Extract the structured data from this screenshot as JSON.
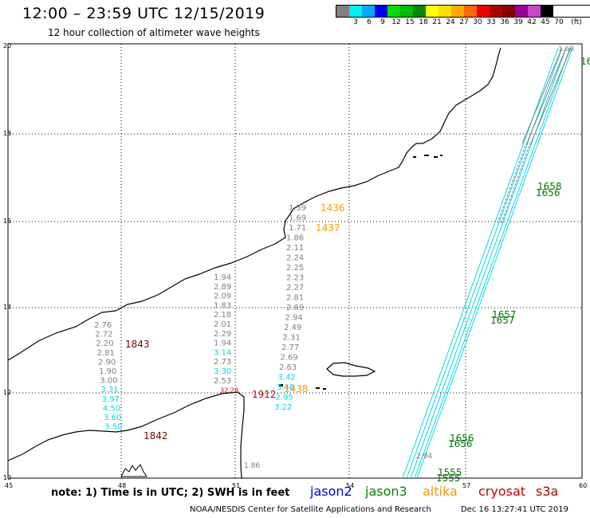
{
  "header": {
    "title": "12:00 – 23:59 UTC 12/15/2019",
    "subtitle": "12 hour collection of altimeter wave heights"
  },
  "legend": {
    "unit": "(ft)",
    "items": [
      {
        "label": "",
        "color": "#808080"
      },
      {
        "label": "3",
        "color": "#00eeee"
      },
      {
        "label": "6",
        "color": "#00aaff"
      },
      {
        "label": "9",
        "color": "#0000ee"
      },
      {
        "label": "12",
        "color": "#00dd00"
      },
      {
        "label": "15",
        "color": "#00bb00"
      },
      {
        "label": "18",
        "color": "#008800"
      },
      {
        "label": "21",
        "color": "#ffff00"
      },
      {
        "label": "24",
        "color": "#ffdd00"
      },
      {
        "label": "27",
        "color": "#ffaa00"
      },
      {
        "label": "30",
        "color": "#ff6600"
      },
      {
        "label": "33",
        "color": "#ee0000"
      },
      {
        "label": "36",
        "color": "#aa0000"
      },
      {
        "label": "39",
        "color": "#880000"
      },
      {
        "label": "42",
        "color": "#990099"
      },
      {
        "label": "45",
        "color": "#cc44cc"
      },
      {
        "label": "70",
        "color": "#000000"
      }
    ]
  },
  "axes": {
    "lon_ticks": [
      "45",
      "48",
      "51",
      "54",
      "57",
      "60"
    ],
    "lat_ticks": [
      "20",
      "18",
      "16",
      "14",
      "12",
      "10"
    ]
  },
  "colors": {
    "gray": "#7f7f7f",
    "cyan": "#00d8e8",
    "green": "#007800",
    "orange": "#ff9900",
    "darkred": "#7a0000",
    "red": "#cc0000"
  },
  "track_values": {
    "west": [
      "2.76",
      "2.72",
      "2.20",
      "2.81",
      "2.90",
      "1.90",
      "3.00",
      "3.31",
      "3.97",
      "4.50",
      "3.60",
      "3.50"
    ],
    "mid": [
      "1.94",
      "2.89",
      "2.09",
      "1.83",
      "2.18",
      "2.01",
      "2.29",
      "1.94",
      "3.14",
      "2.73",
      "3.30",
      "2.53",
      "32.28"
    ],
    "east": [
      "1.59",
      "1.69",
      "1.71",
      "1.86",
      "2.11",
      "2.24",
      "2.25",
      "2.23",
      "2.27",
      "2.81",
      "2.69",
      "2.94",
      "2.49",
      "2.31",
      "2.77",
      "2.69",
      "2.63",
      "3.42",
      "3.46",
      "2.95",
      "3.22"
    ],
    "south": [
      "2.94",
      "1.86"
    ],
    "ne_top": "1.68"
  },
  "time_labels": {
    "west_a": "1843",
    "west_b": "1842",
    "mid": "1912",
    "altika_a": "1436",
    "altika_b": "1437",
    "altika_c": "1438",
    "j3_a": "1658",
    "j3_b": "1656",
    "j3_c": "1657",
    "j3_d": "1657",
    "j3_e": "1656",
    "j3_f": "1656",
    "j3_g": "1555",
    "j3_h": "1555",
    "j3_i": "16"
  },
  "footer": {
    "note": "note: 1) Time is in UTC; 2) SWH is in feet",
    "sat_jason2": "jason2",
    "sat_jason3": "jason3",
    "sat_altika": "altika",
    "sat_cryosat": "cryosat",
    "sat_s3a": "s3a",
    "sat_colors": {
      "jason2": "#0000cc",
      "jason3": "#008800",
      "altika": "#ff9900",
      "cryosat": "#cc0000",
      "s3a": "#aa0000"
    },
    "credit": "NOAA/NESDIS Center for Satellite Applications and Research",
    "timestamp": "Dec 16 13:27:41 UTC 2019"
  }
}
